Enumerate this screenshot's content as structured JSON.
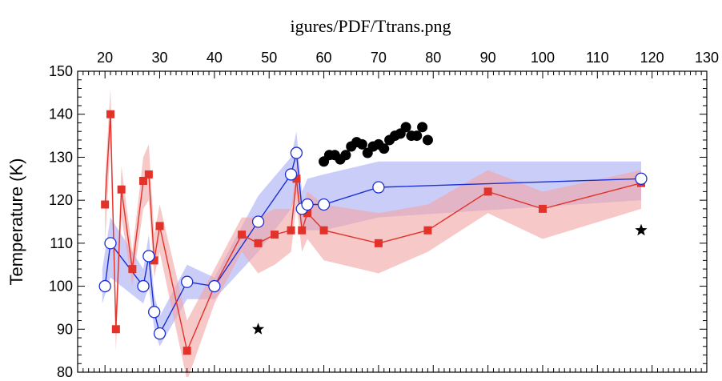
{
  "page": {
    "title": "igures/PDF/Ttrans.png"
  },
  "colors": {
    "blue_series": "#1a2fd6",
    "blue_band": "#a9acf5",
    "red_series": "#e3322a",
    "red_band": "#f2a3a3",
    "black_markers": "#000000"
  },
  "chart_data": {
    "type": "line",
    "title": "",
    "xlabel": "",
    "ylabel": "Temperature (K)",
    "xlim": [
      15,
      130
    ],
    "ylim": [
      80,
      150
    ],
    "x_ticks": [
      20,
      30,
      40,
      50,
      60,
      70,
      80,
      90,
      100,
      110,
      120,
      130
    ],
    "y_ticks": [
      80,
      90,
      100,
      110,
      120,
      130,
      140,
      150
    ],
    "x_tick_labels": [
      "20",
      "30",
      "40",
      "50",
      "60",
      "70",
      "80",
      "90",
      "100",
      "110",
      "120",
      "130"
    ],
    "y_tick_labels": [
      "80",
      "90",
      "100",
      "110",
      "120",
      "130",
      "140",
      "150"
    ],
    "x_axis_position": "top",
    "grid": false,
    "legend": "none",
    "series": [
      {
        "marker": "open-circle",
        "color": "#1a2fd6",
        "points": [
          [
            20,
            100
          ],
          [
            21,
            110
          ],
          [
            27,
            100
          ],
          [
            28,
            107
          ],
          [
            29,
            94
          ],
          [
            30,
            89
          ],
          [
            35,
            101
          ],
          [
            40,
            100
          ],
          [
            48,
            115
          ],
          [
            54,
            126
          ],
          [
            55,
            131
          ],
          [
            56,
            118
          ],
          [
            57,
            119
          ],
          [
            60,
            119
          ],
          [
            70,
            123
          ],
          [
            118,
            125
          ]
        ],
        "band": [
          [
            19.5,
            96,
            104
          ],
          [
            21,
            102,
            116
          ],
          [
            27,
            96,
            104
          ],
          [
            28,
            100,
            112
          ],
          [
            29,
            90,
            98
          ],
          [
            30,
            86,
            93
          ],
          [
            35,
            97,
            105
          ],
          [
            40,
            97,
            102
          ],
          [
            48,
            108,
            121
          ],
          [
            54,
            118,
            130
          ],
          [
            55,
            122,
            136
          ],
          [
            56,
            113,
            122
          ],
          [
            57,
            113,
            125
          ],
          [
            60,
            113,
            126
          ],
          [
            70,
            116,
            129
          ],
          [
            118,
            120,
            129
          ]
        ]
      },
      {
        "marker": "filled-square",
        "color": "#e3322a",
        "points": [
          [
            20,
            119
          ],
          [
            21,
            140
          ],
          [
            22,
            90
          ],
          [
            23,
            122.5
          ],
          [
            25,
            104
          ],
          [
            27,
            124.5
          ],
          [
            28,
            126
          ],
          [
            29,
            106
          ],
          [
            30,
            114
          ],
          [
            35,
            85
          ],
          [
            40,
            100
          ],
          [
            45,
            112
          ],
          [
            48,
            110
          ],
          [
            51,
            112
          ],
          [
            54,
            113
          ],
          [
            55,
            125
          ],
          [
            56,
            113
          ],
          [
            57,
            117
          ],
          [
            60,
            113
          ],
          [
            70,
            110
          ],
          [
            79,
            113
          ],
          [
            90,
            122
          ],
          [
            100,
            118
          ],
          [
            118,
            124
          ]
        ],
        "band": [
          [
            20,
            110,
            125
          ],
          [
            21,
            133,
            146
          ],
          [
            22,
            85,
            95
          ],
          [
            23,
            116,
            128
          ],
          [
            25,
            100,
            108
          ],
          [
            27,
            118,
            130
          ],
          [
            28,
            120,
            133
          ],
          [
            29,
            102,
            112
          ],
          [
            30,
            108,
            119
          ],
          [
            35,
            78,
            92
          ],
          [
            40,
            96,
            104
          ],
          [
            45,
            108,
            116
          ],
          [
            48,
            103,
            116
          ],
          [
            51,
            105,
            118
          ],
          [
            54,
            108,
            118
          ],
          [
            55,
            119,
            128
          ],
          [
            56,
            108,
            118
          ],
          [
            57,
            111,
            122
          ],
          [
            60,
            106,
            119
          ],
          [
            70,
            103,
            117
          ],
          [
            79,
            108,
            119
          ],
          [
            90,
            117,
            127
          ],
          [
            100,
            111,
            122
          ],
          [
            118,
            118,
            127
          ]
        ]
      },
      {
        "marker": "filled-circle",
        "color": "#000000",
        "points": [
          [
            60,
            129
          ],
          [
            61,
            130.5
          ],
          [
            62,
            130.5
          ],
          [
            63,
            129.5
          ],
          [
            64,
            130.5
          ],
          [
            65,
            132.5
          ],
          [
            66,
            133.5
          ],
          [
            67,
            133
          ],
          [
            68,
            131
          ],
          [
            69,
            132.5
          ],
          [
            70,
            133
          ],
          [
            71,
            132
          ],
          [
            72,
            134
          ],
          [
            73,
            135
          ],
          [
            74,
            135.5
          ],
          [
            75,
            137
          ],
          [
            76,
            135
          ],
          [
            77,
            135
          ],
          [
            78,
            137
          ],
          [
            79,
            134
          ]
        ]
      },
      {
        "marker": "star",
        "color": "#000000",
        "points": [
          [
            48,
            90
          ],
          [
            118,
            113
          ]
        ]
      }
    ]
  }
}
